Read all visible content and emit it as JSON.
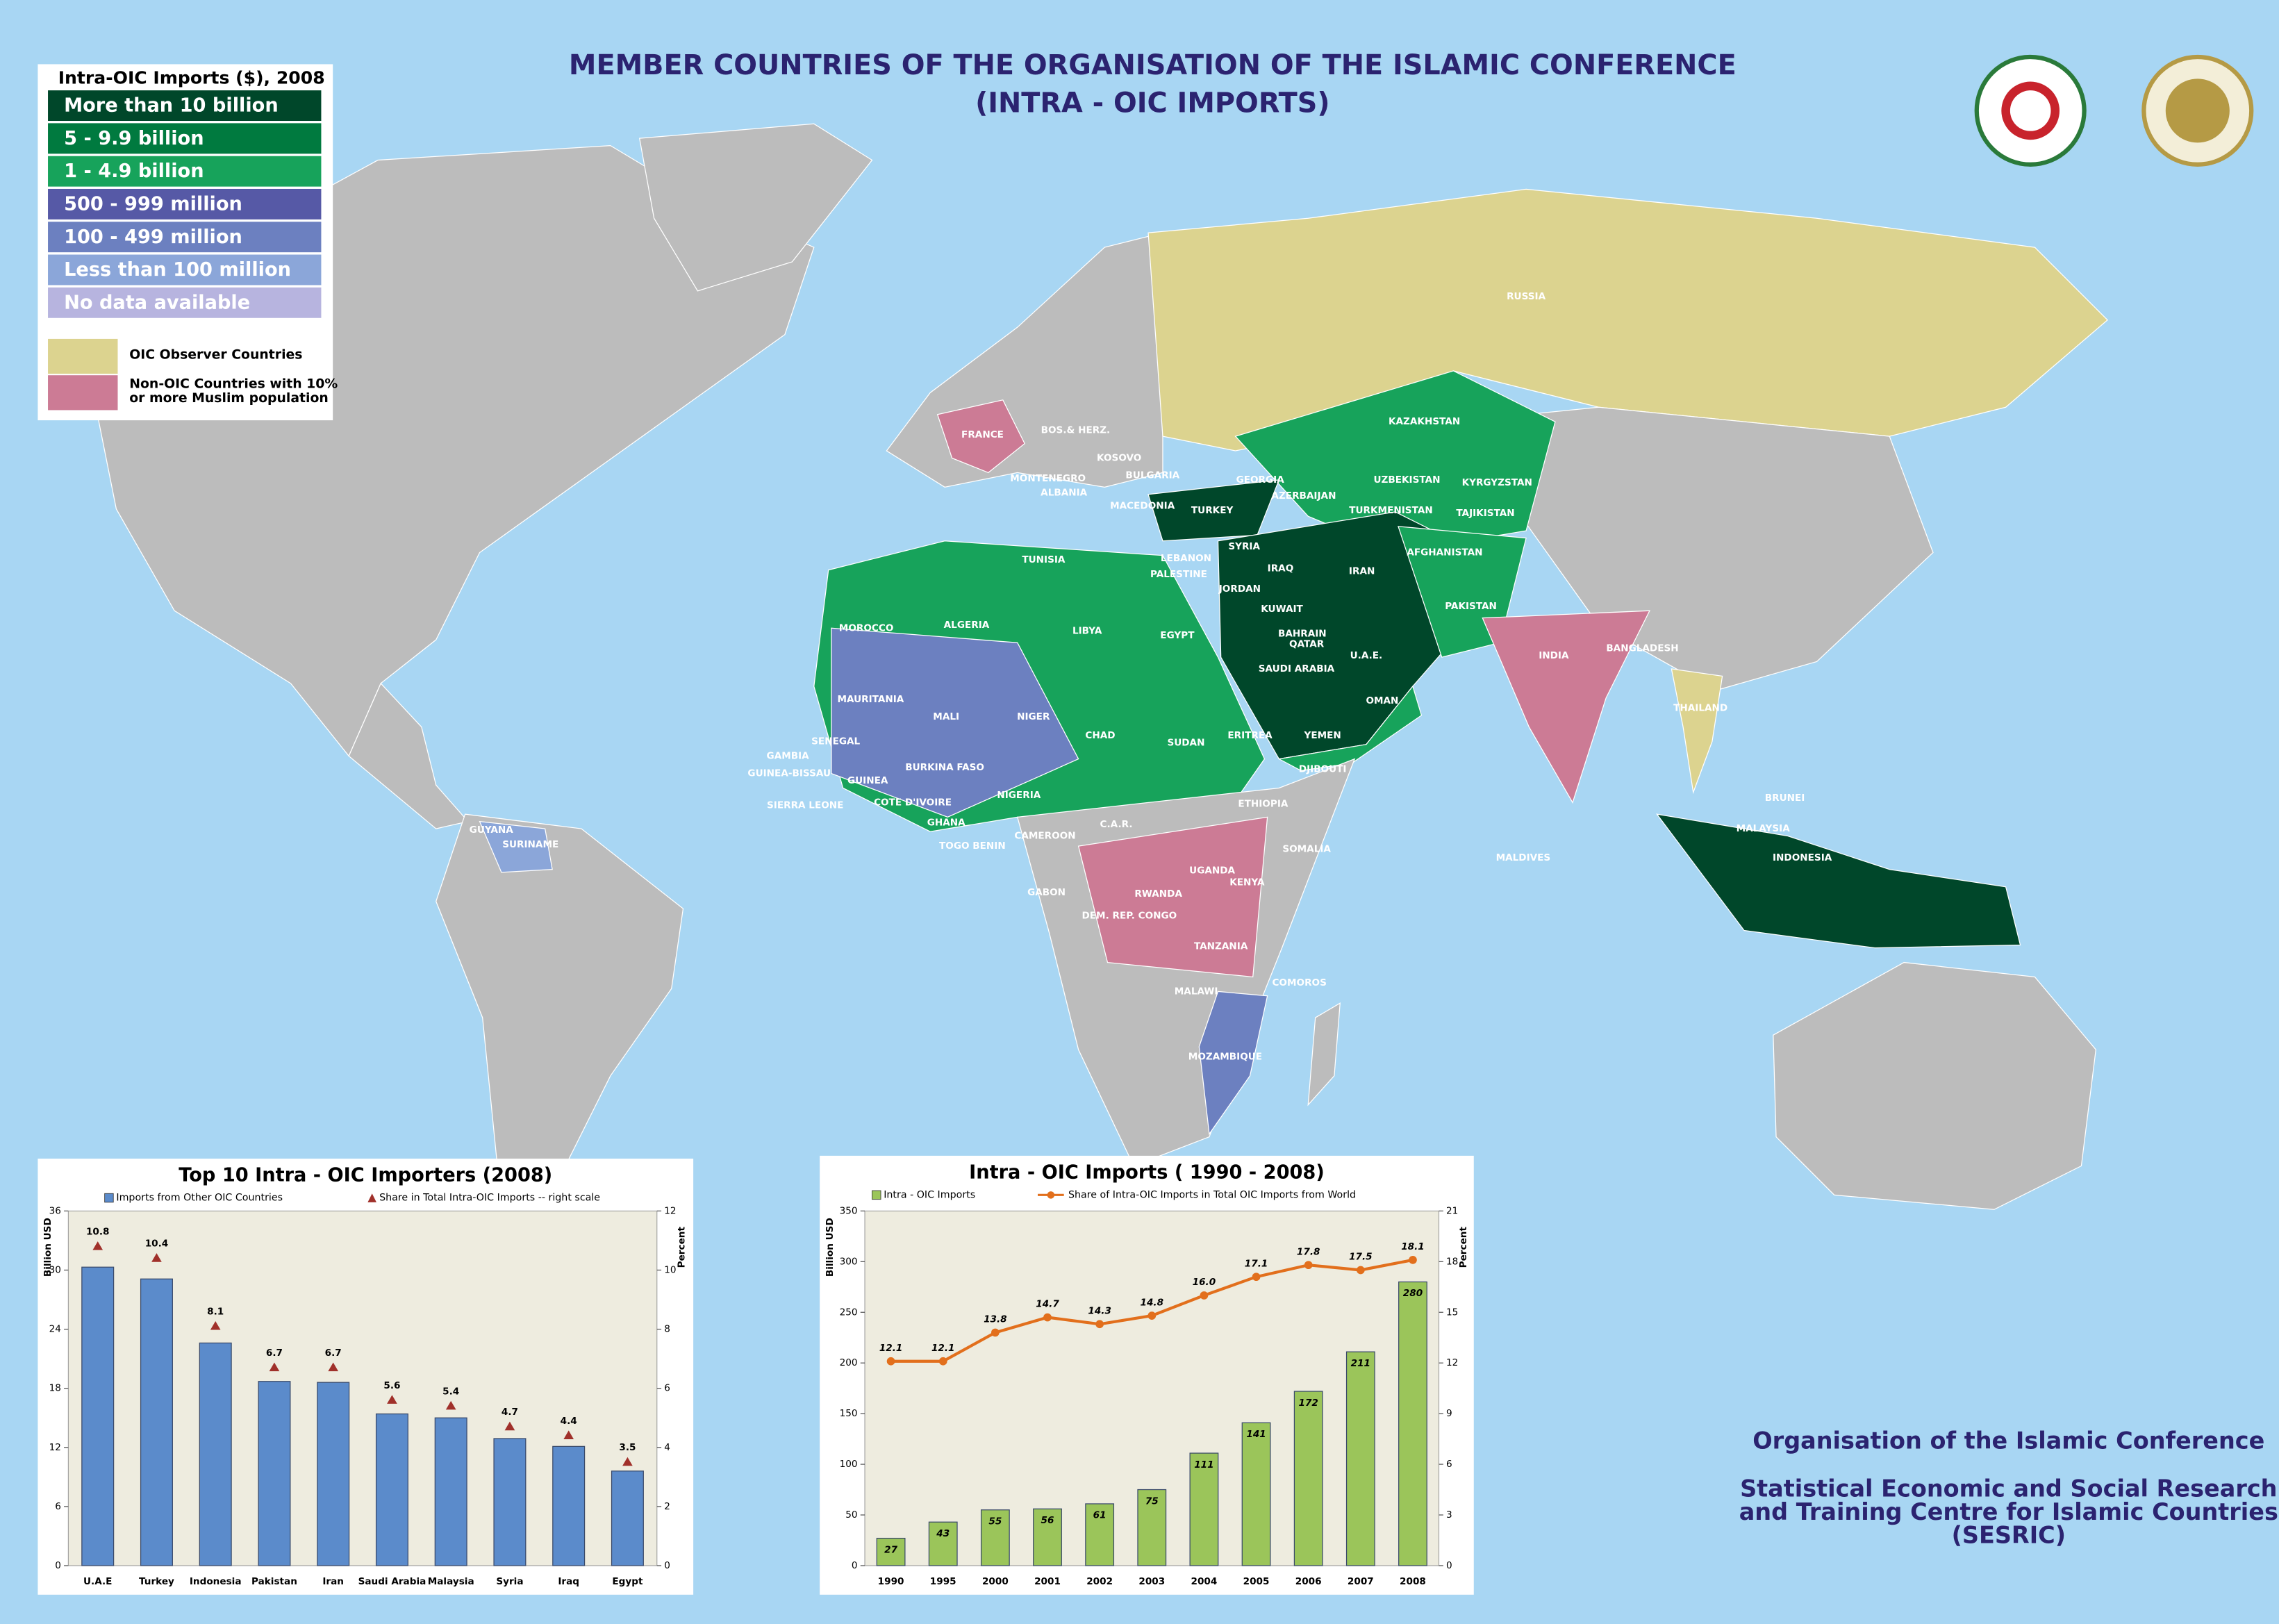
{
  "title": [
    "MEMBER COUNTRIES OF THE ORGANISATION OF THE ISLAMIC CONFERENCE",
    "(INTRA - OIC  IMPORTS)"
  ],
  "legend": {
    "title": "Intra-OIC Imports ($), 2008",
    "items": [
      {
        "label": "More than 10 billion",
        "color": "#00472a"
      },
      {
        "label": "5 - 9.9 billion",
        "color": "#007a3f"
      },
      {
        "label": "1 - 4.9 billion",
        "color": "#17a35b"
      },
      {
        "label": "500 - 999 million",
        "color": "#5659a6"
      },
      {
        "label": "100 - 499 million",
        "color": "#6c80c0"
      },
      {
        "label": "Less than 100 million",
        "color": "#8ba6d9"
      },
      {
        "label": "No data available",
        "color": "#b7b4df"
      }
    ],
    "extra": [
      {
        "lines": [
          "OIC Observer Countries"
        ],
        "color": "#dcd38f"
      },
      {
        "lines": [
          "Non-OIC Countries with 10%",
          "or more Muslim population"
        ],
        "color": "#cc7b95"
      }
    ]
  },
  "map_labels": [
    "RUSSIA",
    "KAZAKHSTAN",
    "UZBEKISTAN",
    "KYRGYZSTAN",
    "TAJIKISTAN",
    "TURKMENISTAN",
    "AFGHANISTAN",
    "GEORGIA",
    "AZERBAIJAN",
    "TURKEY",
    "SYRIA",
    "IRAQ",
    "IRAN",
    "LEBANON",
    "PALESTINE",
    "JORDAN",
    "KUWAIT",
    "BAHRAIN",
    "QATAR",
    "SAUDI ARABIA",
    "U.A.E.",
    "OMAN",
    "YEMEN",
    "PAKISTAN",
    "INDIA",
    "BANGLADESH",
    "THAILAND",
    "BRUNEI",
    "MALAYSIA",
    "INDONESIA",
    "MALDIVES",
    "TUNISIA",
    "ALGERIA",
    "LIBYA",
    "EGYPT",
    "MOROCCO",
    "MAURITANIA",
    "MALI",
    "NIGER",
    "CHAD",
    "SUDAN",
    "ERITREA",
    "DJIBOUTI",
    "ETHIOPIA",
    "SOMALIA",
    "SENEGAL",
    "GAMBIA",
    "GUINEA-BISSAU",
    "GUINEA",
    "SIERRA LEONE",
    "BURKINA FASO",
    "COTE D'IVOIRE",
    "GHANA",
    "TOGO BENIN",
    "NIGERIA",
    "CAMEROON",
    "C.A.R.",
    "GABON",
    "UGANDA",
    "KENYA",
    "RWANDA",
    "DEM. REP. CONGO",
    "TANZANIA",
    "COMOROS",
    "MALAWI",
    "MOZAMBIQUE",
    "GUYANA",
    "SURINAME",
    "FRANCE",
    "BOS.& HERZ.",
    "KOSOVO",
    "BULGARIA",
    "MONTENEGRO",
    "ALBANIA",
    "MACEDONIA"
  ],
  "footer": {
    "organisation": "Organisation of the Islamic Conference",
    "centre": [
      "Statistical Economic and Social Research",
      "and Training Centre for Islamic Countries",
      "(SESRIC)"
    ]
  },
  "chart_data": [
    {
      "type": "bar",
      "title": "Top  10  Intra - OIC   Importers  (2008)",
      "categories": [
        "U.A.E",
        "Turkey",
        "Indonesia",
        "Pakistan",
        "Iran",
        "Saudi Arabia",
        "Malaysia",
        "Syria",
        "Iraq",
        "Egypt"
      ],
      "series": [
        {
          "name": "Imports  from  Other  OIC Countries",
          "type": "bar",
          "color": "#5b8bcb",
          "values": [
            30.3,
            29.1,
            22.6,
            18.7,
            18.6,
            15.4,
            15.0,
            12.9,
            12.1,
            9.6
          ]
        },
        {
          "name": "Share  in  Total  Intra-OIC   Imports -- right scale",
          "type": "scatter",
          "axis": "y2",
          "color": "#a0302a",
          "values": [
            10.8,
            10.4,
            8.1,
            6.7,
            6.7,
            5.6,
            5.4,
            4.7,
            4.4,
            3.5
          ]
        }
      ],
      "y_label": "Billion   USD",
      "y2_label": "Percent",
      "ylim": [
        0,
        36
      ],
      "yticks": [
        0,
        6,
        12,
        18,
        24,
        30,
        36
      ],
      "y2lim": [
        0,
        12
      ],
      "y2ticks": [
        0,
        2,
        4,
        6,
        8,
        10,
        12
      ]
    },
    {
      "type": "bar",
      "title": "Intra  -  OIC  Imports ( 1990 - 2008)",
      "categories": [
        "1990",
        "1995",
        "2000",
        "2001",
        "2002",
        "2003",
        "2004",
        "2005",
        "2006",
        "2007",
        "2008"
      ],
      "series": [
        {
          "name": "Intra - OIC  Imports",
          "type": "bar",
          "color": "#9bc55a",
          "values": [
            27,
            43,
            55,
            56,
            61,
            75,
            111,
            141,
            172,
            211,
            280
          ]
        },
        {
          "name": "Share   of   Intra-OIC   Imports   in   Total   OIC   Imports   from   World",
          "type": "line",
          "axis": "y2",
          "color": "#e26f1c",
          "values": [
            12.1,
            12.1,
            13.8,
            14.7,
            14.3,
            14.8,
            16.0,
            17.1,
            17.8,
            17.5,
            18.1
          ],
          "value_labels": [
            "12.1",
            "12.1",
            "13.8",
            "14.7",
            "14.3",
            "14.8",
            "16.0",
            "17.1",
            "17.8",
            "17.5",
            "18.1"
          ]
        }
      ],
      "y_label": "Billion   USD",
      "y2_label": "Percent",
      "ylim": [
        0,
        350
      ],
      "yticks": [
        0,
        50,
        100,
        150,
        200,
        250,
        300,
        350
      ],
      "y2lim": [
        0,
        21
      ],
      "y2ticks": [
        0,
        3,
        6,
        9,
        12,
        15,
        18,
        21
      ]
    }
  ]
}
